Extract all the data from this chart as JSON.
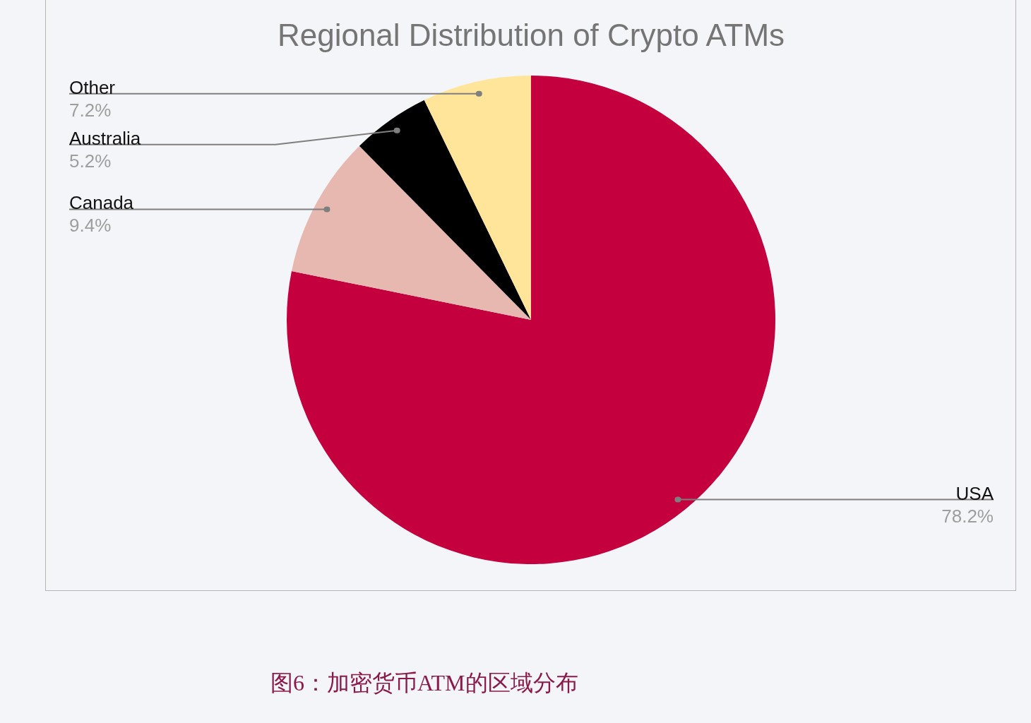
{
  "chart_data": {
    "type": "pie",
    "title": "Regional Distribution of Crypto ATMs",
    "categories": [
      "USA",
      "Canada",
      "Australia",
      "Other"
    ],
    "values": [
      78.2,
      9.4,
      5.2,
      7.2
    ],
    "value_labels": [
      "78.2%",
      "9.4%",
      "5.2%",
      "7.2%"
    ],
    "colors": [
      "#c5003e",
      "#e6b8af",
      "#000000",
      "#ffe599"
    ],
    "annotations": [
      "图6：加密货币ATM的区域分布"
    ]
  }
}
